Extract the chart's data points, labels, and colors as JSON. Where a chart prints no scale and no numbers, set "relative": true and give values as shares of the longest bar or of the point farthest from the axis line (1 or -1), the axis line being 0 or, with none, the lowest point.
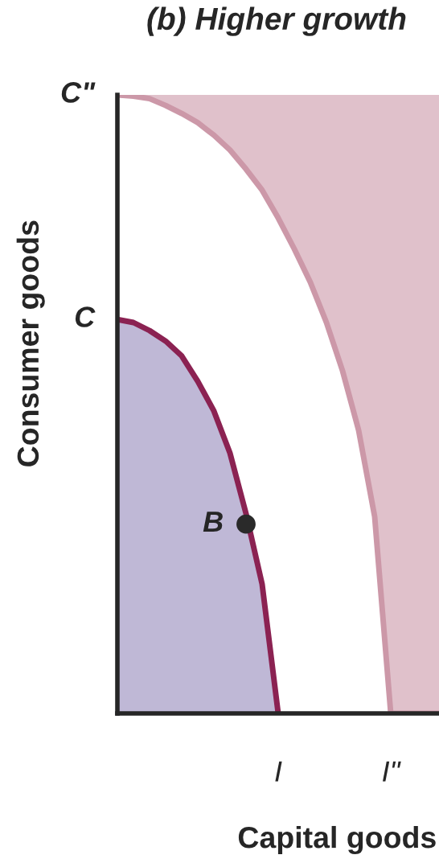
{
  "chart_data": {
    "type": "area",
    "title": "(b) Higher growth",
    "xlabel": "Capital goods",
    "ylabel": "Consumer goods",
    "relative": true,
    "categories": [
      null,
      null,
      null,
      null,
      null,
      null,
      null,
      null,
      null,
      null,
      "I",
      null,
      null,
      null,
      null,
      null,
      null,
      "I\"",
      null,
      null,
      null
    ],
    "series": [
      {
        "type": "line",
        "color": "#cc98a8",
        "values": [
          1,
          0.998,
          0.994,
          0.983,
          0.97,
          0.955,
          0.935,
          0.911,
          0.88,
          0.846,
          0.801,
          0.751,
          0.697,
          0.632,
          0.554,
          0.458,
          0.318,
          0,
          0,
          0,
          0
        ],
        "lower": [
          1,
          0.998,
          0.994,
          0.983,
          0.97,
          0.955,
          0.935,
          0.911,
          0.88,
          0.846,
          0.801,
          0.751,
          0.697,
          0.632,
          0.554,
          0.458,
          0.318,
          0,
          0,
          0,
          0
        ],
        "upper": [
          1,
          1,
          1,
          1,
          1,
          1,
          1,
          1,
          1,
          1,
          1,
          1,
          1,
          1,
          1,
          1,
          1,
          1,
          1,
          1,
          1
        ]
      },
      {
        "color": "#8b2252",
        "values": [
          0.637,
          0.632,
          0.619,
          0.602,
          0.578,
          0.537,
          0.489,
          0.421,
          0.323,
          0.209,
          0,
          null,
          null,
          null,
          null,
          null,
          null,
          null,
          null,
          null,
          null
        ]
      },
      {
        "type": "scatter",
        "color": "#2a2a2a",
        "values": [
          null,
          null,
          null,
          null,
          null,
          null,
          null,
          null,
          0.306,
          null,
          null,
          null,
          null,
          null,
          null,
          null,
          null,
          null,
          null,
          null,
          null
        ]
      }
    ],
    "annotations": [
      "C\"",
      "C",
      "B"
    ]
  }
}
